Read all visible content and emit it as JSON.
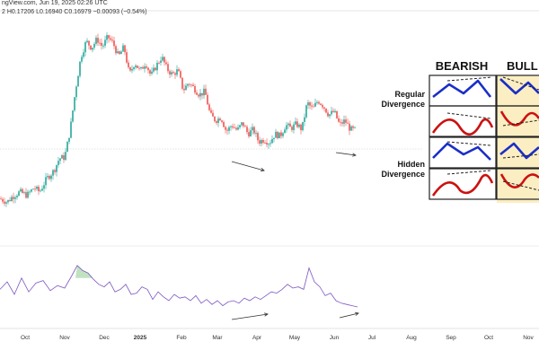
{
  "header": {
    "source": "ngView.com, Jun 19, 2025 02:26 UTC",
    "ohlc": "2  H0.17206  L0.16940  C0.16979  −0.00093 (−0.54%)"
  },
  "chart_data": [
    {
      "type": "candlestick",
      "title": "",
      "x_axis_labels": [
        "Oct",
        "Nov",
        "Dec",
        "2025",
        "Feb",
        "Mar",
        "Apr",
        "May",
        "Jun",
        "Jul",
        "Aug",
        "Sep",
        "Oct",
        "Nov"
      ],
      "price_path": [
        [
          0,
          0.046
        ],
        [
          8,
          0.04
        ],
        [
          14,
          0.05
        ],
        [
          22,
          0.058
        ],
        [
          30,
          0.052
        ],
        [
          38,
          0.066
        ],
        [
          44,
          0.058
        ],
        [
          52,
          0.082
        ],
        [
          60,
          0.096
        ],
        [
          66,
          0.118
        ],
        [
          72,
          0.12
        ],
        [
          78,
          0.168
        ],
        [
          84,
          0.24
        ],
        [
          90,
          0.3
        ],
        [
          96,
          0.328
        ],
        [
          102,
          0.316
        ],
        [
          108,
          0.332
        ],
        [
          114,
          0.318
        ],
        [
          120,
          0.336
        ],
        [
          126,
          0.324
        ],
        [
          132,
          0.3
        ],
        [
          138,
          0.318
        ],
        [
          144,
          0.268
        ],
        [
          150,
          0.29
        ],
        [
          156,
          0.274
        ],
        [
          162,
          0.29
        ],
        [
          168,
          0.266
        ],
        [
          174,
          0.284
        ],
        [
          180,
          0.3
        ],
        [
          186,
          0.278
        ],
        [
          192,
          0.268
        ],
        [
          198,
          0.276
        ],
        [
          204,
          0.24
        ],
        [
          210,
          0.254
        ],
        [
          216,
          0.244
        ],
        [
          222,
          0.232
        ],
        [
          228,
          0.238
        ],
        [
          234,
          0.196
        ],
        [
          240,
          0.186
        ],
        [
          246,
          0.192
        ],
        [
          252,
          0.166
        ],
        [
          258,
          0.178
        ],
        [
          264,
          0.168
        ],
        [
          270,
          0.182
        ],
        [
          276,
          0.162
        ],
        [
          282,
          0.17
        ],
        [
          288,
          0.148
        ],
        [
          294,
          0.152
        ],
        [
          300,
          0.146
        ],
        [
          306,
          0.162
        ],
        [
          312,
          0.158
        ],
        [
          318,
          0.178
        ],
        [
          324,
          0.172
        ],
        [
          330,
          0.18
        ],
        [
          336,
          0.17
        ],
        [
          342,
          0.218
        ],
        [
          348,
          0.206
        ],
        [
          354,
          0.222
        ],
        [
          360,
          0.212
        ],
        [
          366,
          0.196
        ],
        [
          372,
          0.202
        ],
        [
          378,
          0.178
        ],
        [
          384,
          0.186
        ],
        [
          390,
          0.17
        ],
        [
          396,
          0.169
        ]
      ],
      "annotations": [
        "price lower-low trendline (Mar–Apr)",
        "price trendline (Jun)"
      ]
    },
    {
      "type": "line",
      "title": "",
      "x": [
        0,
        8,
        16,
        24,
        32,
        40,
        48,
        56,
        64,
        72,
        80,
        86,
        92,
        98,
        104,
        110,
        116,
        122,
        128,
        134,
        140,
        146,
        152,
        158,
        164,
        170,
        176,
        182,
        188,
        194,
        200,
        206,
        212,
        218,
        224,
        230,
        236,
        242,
        248,
        254,
        260,
        266,
        272,
        278,
        284,
        290,
        296,
        302,
        308,
        314,
        320,
        326,
        332,
        338,
        344,
        350,
        356,
        362,
        368,
        374,
        380,
        386,
        392,
        398
      ],
      "values": [
        48,
        60,
        40,
        66,
        44,
        58,
        62,
        46,
        54,
        50,
        70,
        86,
        78,
        74,
        64,
        56,
        52,
        60,
        44,
        48,
        56,
        40,
        42,
        52,
        48,
        32,
        44,
        36,
        30,
        40,
        34,
        36,
        30,
        38,
        26,
        32,
        24,
        30,
        22,
        28,
        30,
        26,
        34,
        30,
        36,
        32,
        38,
        44,
        42,
        48,
        56,
        50,
        52,
        48,
        82,
        60,
        52,
        38,
        42,
        30,
        26,
        24,
        22,
        20
      ],
      "ylim": [
        0,
        100
      ],
      "annotations": [
        "oscillator higher-low trendline (Mar–Apr)",
        "oscillator trendline (Jun)"
      ]
    }
  ],
  "inset": {
    "col_titles": [
      "BEARISH",
      "BULL"
    ],
    "row_titles": [
      [
        "Regular",
        "Divergence"
      ],
      [
        "Hidden",
        "Divergence"
      ]
    ],
    "colors": {
      "price_line": "#1a2ec8",
      "osc_line": "#cc1111",
      "bull_bg": "#fbeec2",
      "border": "#222222"
    }
  }
}
